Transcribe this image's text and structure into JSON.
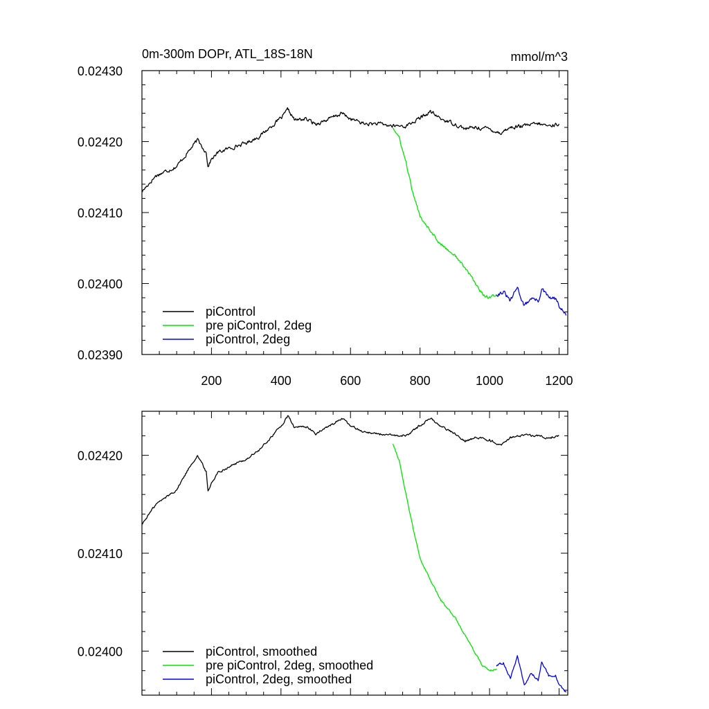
{
  "chart_data": [
    {
      "type": "line",
      "title": "0m-300m DOPr, ATL_18S-18N",
      "units": "mmol/m^3",
      "xlim": [
        0,
        1225
      ],
      "ylim": [
        0.0239,
        0.0243
      ],
      "xticks": [
        200,
        400,
        600,
        800,
        1000,
        1200
      ],
      "xtick_labels": [
        "200",
        "400",
        "600",
        "800",
        "1000",
        "1200"
      ],
      "yticks": [
        0.0239,
        0.024,
        0.0241,
        0.0242,
        0.0243
      ],
      "ytick_labels": [
        "0.02390",
        "0.02400",
        "0.02410",
        "0.02420",
        "0.02430"
      ],
      "legend_position": "bottom-left",
      "series": [
        {
          "name": "piControl",
          "color": "#000000",
          "noise": 2.2e-06,
          "points": [
            [
              1,
              0.02413
            ],
            [
              40,
              0.024152
            ],
            [
              100,
              0.024165
            ],
            [
              140,
              0.02419
            ],
            [
              160,
              0.024202
            ],
            [
              185,
              0.024185
            ],
            [
              190,
              0.024165
            ],
            [
              200,
              0.024175
            ],
            [
              220,
              0.024185
            ],
            [
              260,
              0.024192
            ],
            [
              300,
              0.024198
            ],
            [
              340,
              0.024208
            ],
            [
              380,
              0.024225
            ],
            [
              405,
              0.024235
            ],
            [
              420,
              0.024245
            ],
            [
              440,
              0.02423
            ],
            [
              470,
              0.024232
            ],
            [
              500,
              0.024225
            ],
            [
              540,
              0.024232
            ],
            [
              575,
              0.02424
            ],
            [
              600,
              0.024232
            ],
            [
              640,
              0.024225
            ],
            [
              680,
              0.024225
            ],
            [
              720,
              0.024222
            ],
            [
              760,
              0.024222
            ],
            [
              790,
              0.02423
            ],
            [
              830,
              0.024242
            ],
            [
              860,
              0.024232
            ],
            [
              900,
              0.024225
            ],
            [
              930,
              0.024218
            ],
            [
              960,
              0.02422
            ],
            [
              1000,
              0.024218
            ],
            [
              1030,
              0.024212
            ],
            [
              1060,
              0.02422
            ],
            [
              1100,
              0.024222
            ],
            [
              1140,
              0.024225
            ],
            [
              1170,
              0.024222
            ],
            [
              1200,
              0.024225
            ]
          ]
        },
        {
          "name": "pre piControl, 2deg",
          "color": "#00e600",
          "noise": 1.8e-06,
          "points": [
            [
              722,
              0.02422
            ],
            [
              740,
              0.024205
            ],
            [
              760,
              0.02417
            ],
            [
              780,
              0.024125
            ],
            [
              800,
              0.024095
            ],
            [
              830,
              0.024075
            ],
            [
              860,
              0.024055
            ],
            [
              900,
              0.02404
            ],
            [
              940,
              0.024015
            ],
            [
              980,
              0.023985
            ],
            [
              1000,
              0.02398
            ],
            [
              1020,
              0.023985
            ]
          ]
        },
        {
          "name": "piControl, 2deg",
          "color": "#0000e6",
          "noise": 2.5e-06,
          "points": [
            [
              1020,
              0.023985
            ],
            [
              1040,
              0.023988
            ],
            [
              1060,
              0.023975
            ],
            [
              1080,
              0.023995
            ],
            [
              1100,
              0.023968
            ],
            [
              1120,
              0.02398
            ],
            [
              1140,
              0.023975
            ],
            [
              1150,
              0.023992
            ],
            [
              1170,
              0.02398
            ],
            [
              1190,
              0.023978
            ],
            [
              1200,
              0.023968
            ],
            [
              1220,
              0.023955
            ]
          ]
        }
      ]
    },
    {
      "type": "line",
      "xlim": [
        0,
        1225
      ],
      "ylim": [
        0.023955,
        0.024245
      ],
      "xticks": [
        200,
        400,
        600,
        800,
        1000,
        1200
      ],
      "yticks": [
        0.024,
        0.0241,
        0.0242
      ],
      "ytick_labels": [
        "0.02400",
        "0.02410",
        "0.02420"
      ],
      "legend_position": "bottom-left",
      "series": [
        {
          "name": "piControl, smoothed",
          "color": "#000000",
          "noise": 1e-06,
          "points": [
            [
              1,
              0.02413
            ],
            [
              40,
              0.02415
            ],
            [
              100,
              0.024165
            ],
            [
              140,
              0.02419
            ],
            [
              160,
              0.0242
            ],
            [
              185,
              0.024183
            ],
            [
              190,
              0.024163
            ],
            [
              200,
              0.024172
            ],
            [
              220,
              0.024183
            ],
            [
              260,
              0.02419
            ],
            [
              300,
              0.024196
            ],
            [
              340,
              0.024206
            ],
            [
              380,
              0.024222
            ],
            [
              405,
              0.024232
            ],
            [
              420,
              0.02424
            ],
            [
              440,
              0.024228
            ],
            [
              470,
              0.02423
            ],
            [
              500,
              0.024222
            ],
            [
              540,
              0.02423
            ],
            [
              575,
              0.024238
            ],
            [
              600,
              0.02423
            ],
            [
              640,
              0.024224
            ],
            [
              680,
              0.024222
            ],
            [
              720,
              0.02422
            ],
            [
              760,
              0.02422
            ],
            [
              790,
              0.024228
            ],
            [
              830,
              0.024238
            ],
            [
              860,
              0.02423
            ],
            [
              900,
              0.024222
            ],
            [
              930,
              0.024215
            ],
            [
              960,
              0.024218
            ],
            [
              1000,
              0.024216
            ],
            [
              1030,
              0.02421
            ],
            [
              1060,
              0.024218
            ],
            [
              1100,
              0.02422
            ],
            [
              1140,
              0.02422
            ],
            [
              1170,
              0.024218
            ],
            [
              1200,
              0.02422
            ]
          ]
        },
        {
          "name": "pre piControl, 2deg, smoothed",
          "color": "#00e600",
          "noise": 8e-07,
          "points": [
            [
              722,
              0.024212
            ],
            [
              740,
              0.024195
            ],
            [
              760,
              0.02416
            ],
            [
              780,
              0.024125
            ],
            [
              800,
              0.024095
            ],
            [
              830,
              0.024072
            ],
            [
              860,
              0.024052
            ],
            [
              900,
              0.024035
            ],
            [
              940,
              0.02401
            ],
            [
              980,
              0.023985
            ],
            [
              1000,
              0.02398
            ],
            [
              1020,
              0.023982
            ]
          ]
        },
        {
          "name": "piControl, 2deg, smoothed",
          "color": "#0000e6",
          "noise": 1e-06,
          "points": [
            [
              1020,
              0.023985
            ],
            [
              1040,
              0.023988
            ],
            [
              1060,
              0.023972
            ],
            [
              1080,
              0.023995
            ],
            [
              1100,
              0.023965
            ],
            [
              1120,
              0.023978
            ],
            [
              1140,
              0.02397
            ],
            [
              1150,
              0.02399
            ],
            [
              1170,
              0.023975
            ],
            [
              1190,
              0.023975
            ],
            [
              1200,
              0.023965
            ],
            [
              1220,
              0.023958
            ]
          ]
        }
      ]
    }
  ]
}
